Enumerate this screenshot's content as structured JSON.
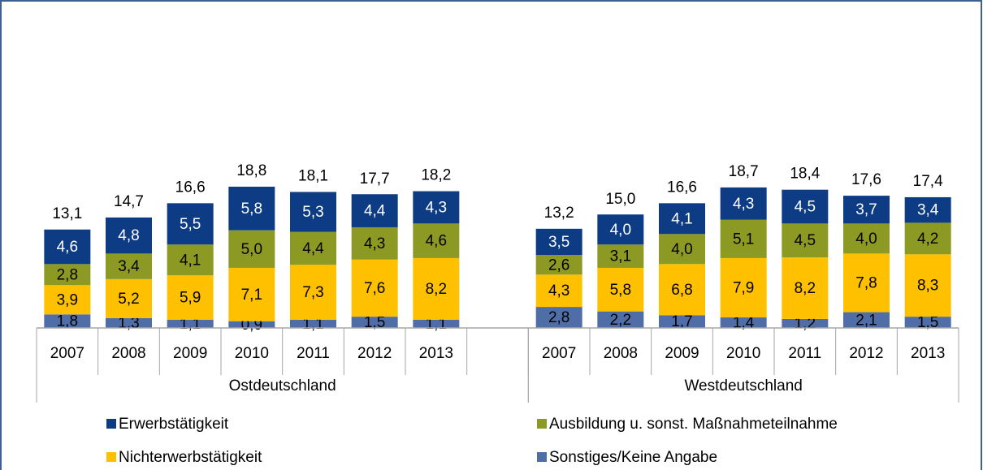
{
  "chart_data": {
    "type": "bar",
    "stacked": true,
    "categories": [
      "2007",
      "2008",
      "2009",
      "2010",
      "2011",
      "2012",
      "2013",
      null,
      "2007",
      "2008",
      "2009",
      "2010",
      "2011",
      "2012",
      "2013"
    ],
    "groups": [
      {
        "label": "Ostdeutschland",
        "size": 8
      },
      {
        "label": "Westdeutschland",
        "size": 7
      }
    ],
    "ylim": [
      0,
      43
    ],
    "series": [
      {
        "name": "Sonstiges/Keine Angabe",
        "color": "#4f6ea8",
        "values": [
          1.8,
          1.3,
          1.1,
          0.9,
          1.1,
          1.5,
          1.1,
          null,
          2.8,
          2.2,
          1.7,
          1.4,
          1.2,
          2.1,
          1.5
        ],
        "value_labels": [
          "1,8",
          "1,3",
          "1,1",
          "0,9",
          "1,1",
          "1,5",
          "1,1",
          null,
          "2,8",
          "2,2",
          "1,7",
          "1,4",
          "1,2",
          "2,1",
          "1,5"
        ]
      },
      {
        "name": "Nichterwerbstätigkeit",
        "color": "#ffc000",
        "values": [
          3.9,
          5.2,
          5.9,
          7.1,
          7.3,
          7.6,
          8.2,
          null,
          4.3,
          5.8,
          6.8,
          7.9,
          8.2,
          7.8,
          8.3
        ],
        "value_labels": [
          "3,9",
          "5,2",
          "5,9",
          "7,1",
          "7,3",
          "7,6",
          "8,2",
          null,
          "4,3",
          "5,8",
          "6,8",
          "7,9",
          "8,2",
          "7,8",
          "8,3"
        ]
      },
      {
        "name": "Ausbildung u. sonst. Maßnahmeteilnahme",
        "color": "#8c9a24",
        "values": [
          2.8,
          3.4,
          4.1,
          5.0,
          4.4,
          4.3,
          4.6,
          null,
          2.6,
          3.1,
          4.0,
          5.1,
          4.5,
          4.0,
          4.2
        ],
        "value_labels": [
          "2,8",
          "3,4",
          "4,1",
          "5,0",
          "4,4",
          "4,3",
          "4,6",
          null,
          "2,6",
          "3,1",
          "4,0",
          "5,1",
          "4,5",
          "4,0",
          "4,2"
        ]
      },
      {
        "name": "Erwerbstätigkeit",
        "color": "#0d3c84",
        "values": [
          4.6,
          4.8,
          5.5,
          5.8,
          5.3,
          4.4,
          4.3,
          null,
          3.5,
          4.0,
          4.1,
          4.3,
          4.5,
          3.7,
          3.4
        ],
        "value_labels": [
          "4,6",
          "4,8",
          "5,5",
          "5,8",
          "5,3",
          "4,4",
          "4,3",
          null,
          "3,5",
          "4,0",
          "4,1",
          "4,3",
          "4,5",
          "3,7",
          "3,4"
        ]
      }
    ],
    "totals": {
      "values": [
        13.1,
        14.7,
        16.6,
        18.8,
        18.1,
        17.7,
        18.2,
        null,
        13.2,
        15.0,
        16.6,
        18.7,
        18.4,
        17.6,
        17.4
      ],
      "value_labels": [
        "13,1",
        "14,7",
        "16,6",
        "18,8",
        "18,1",
        "17,7",
        "18,2",
        null,
        "13,2",
        "15,0",
        "16,6",
        "18,7",
        "18,4",
        "17,6",
        "17,4"
      ]
    }
  }
}
